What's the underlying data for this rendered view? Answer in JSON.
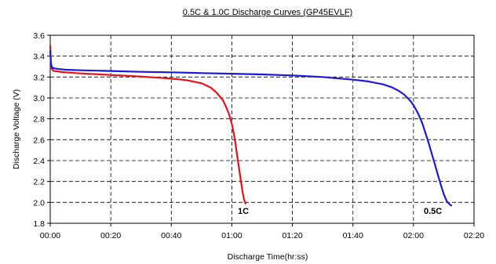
{
  "chart_data": {
    "type": "line",
    "title": "0.5C & 1.0C Discharge Curves (GP45EVLF)",
    "xlabel": "Discharge Time(hr:ss)",
    "ylabel": "Discharge Voltage (V)",
    "x_unit": "minutes",
    "xlim": [
      0,
      140
    ],
    "ylim": [
      1.8,
      3.6
    ],
    "x_ticks": [
      0,
      20,
      40,
      60,
      80,
      100,
      120,
      140
    ],
    "x_tick_labels": [
      "00:00",
      "00:20",
      "00:40",
      "01:00",
      "01:20",
      "01:40",
      "02:00",
      "02:20"
    ],
    "y_ticks": [
      1.8,
      2.0,
      2.2,
      2.4,
      2.6,
      2.8,
      3.0,
      3.2,
      3.4,
      3.6
    ],
    "y_tick_labels": [
      "1.8",
      "2.0",
      "2.2",
      "2.4",
      "2.6",
      "2.8",
      "3.0",
      "3.2",
      "3.4",
      "3.6"
    ],
    "grid": "dashed",
    "series": [
      {
        "name": "1C",
        "color": "#e8101a",
        "x": [
          0,
          0.2,
          0.5,
          1,
          2,
          5,
          10,
          20,
          30,
          40,
          45,
          50,
          53,
          55,
          57,
          58,
          59,
          60,
          60.5,
          61,
          61.5,
          62,
          62.5,
          63,
          63.5,
          64,
          64.5
        ],
        "y": [
          3.5,
          3.35,
          3.28,
          3.26,
          3.255,
          3.245,
          3.235,
          3.22,
          3.205,
          3.185,
          3.17,
          3.14,
          3.1,
          3.05,
          2.98,
          2.92,
          2.85,
          2.75,
          2.68,
          2.6,
          2.5,
          2.4,
          2.3,
          2.2,
          2.11,
          2.03,
          1.99
        ]
      },
      {
        "name": "0.5C",
        "color": "#1a1adc",
        "x": [
          0,
          0.2,
          0.5,
          1,
          2,
          5,
          10,
          20,
          30,
          40,
          50,
          60,
          70,
          80,
          90,
          100,
          105,
          110,
          113,
          115,
          117,
          119,
          120,
          121,
          122,
          123,
          124,
          125,
          126,
          127,
          128,
          129,
          130,
          131,
          132,
          132.5
        ],
        "y": [
          3.45,
          3.33,
          3.3,
          3.285,
          3.28,
          3.27,
          3.265,
          3.258,
          3.25,
          3.245,
          3.238,
          3.232,
          3.225,
          3.215,
          3.2,
          3.175,
          3.158,
          3.13,
          3.1,
          3.07,
          3.03,
          2.97,
          2.93,
          2.88,
          2.82,
          2.75,
          2.66,
          2.57,
          2.47,
          2.37,
          2.27,
          2.17,
          2.08,
          2.01,
          1.98,
          1.97
        ]
      }
    ],
    "annotations": [
      "1C",
      "0.5C"
    ]
  }
}
